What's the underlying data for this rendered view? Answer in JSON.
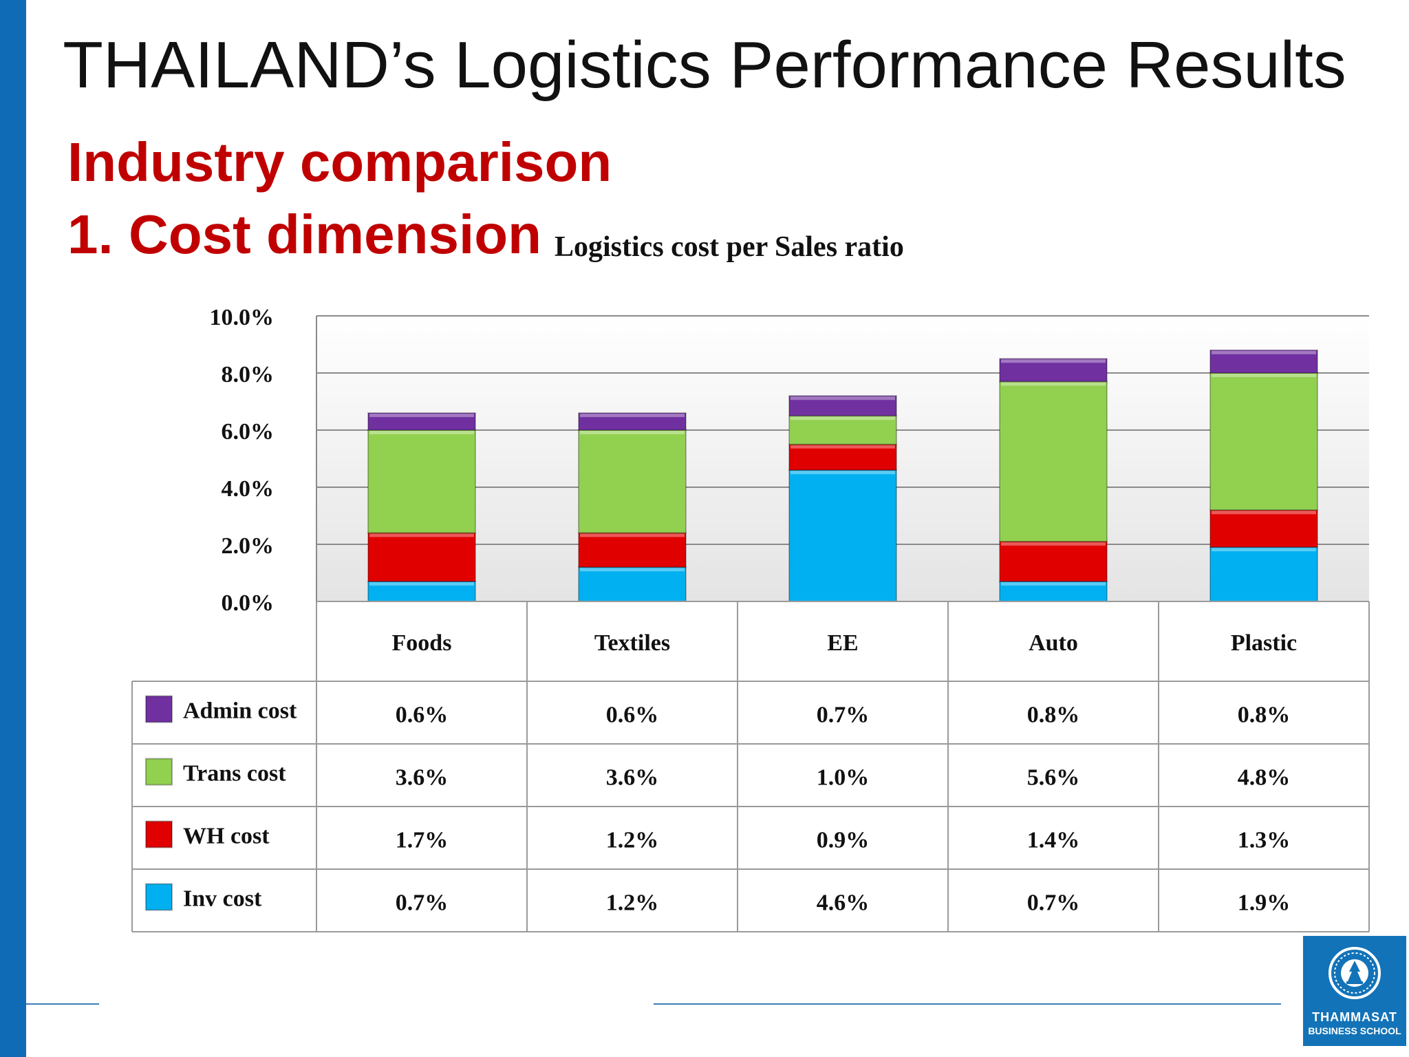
{
  "slide": {
    "title": "THAILAND’s Logistics Performance Results",
    "subtitle1": "Industry comparison",
    "subtitle2": "1. Cost dimension"
  },
  "logo": {
    "line1": "THAMMASAT",
    "line2": "BUSINESS SCHOOL"
  },
  "chart_data": {
    "type": "bar",
    "stacked": true,
    "title": "Logistics cost per Sales ratio",
    "categories": [
      "Foods",
      "Textiles",
      "EE",
      "Auto",
      "Plastic"
    ],
    "series": [
      {
        "name": "Inv cost",
        "values": [
          0.7,
          1.2,
          4.6,
          0.7,
          1.9
        ],
        "labels": [
          "0.7%",
          "1.2%",
          "4.6%",
          "0.7%",
          "1.9%"
        ],
        "color": "#00b0f0"
      },
      {
        "name": "WH cost",
        "values": [
          1.7,
          1.2,
          0.9,
          1.4,
          1.3
        ],
        "labels": [
          "1.7%",
          "1.2%",
          "0.9%",
          "1.4%",
          "1.3%"
        ],
        "color": "#e00000"
      },
      {
        "name": "Trans cost",
        "values": [
          3.6,
          3.6,
          1.0,
          5.6,
          4.8
        ],
        "labels": [
          "3.6%",
          "3.6%",
          "1.0%",
          "5.6%",
          "4.8%"
        ],
        "color": "#92d050"
      },
      {
        "name": "Admin cost",
        "values": [
          0.6,
          0.6,
          0.7,
          0.8,
          0.8
        ],
        "labels": [
          "0.6%",
          "0.6%",
          "0.7%",
          "0.8%",
          "0.8%"
        ],
        "color": "#7030a0"
      }
    ],
    "table_order": [
      "Admin cost",
      "Trans cost",
      "WH cost",
      "Inv cost"
    ],
    "ylim": [
      0,
      10
    ],
    "yticks": [
      0,
      2,
      4,
      6,
      8,
      10
    ],
    "ytick_labels": [
      "0.0%",
      "2.0%",
      "4.0%",
      "6.0%",
      "8.0%",
      "10.0%"
    ],
    "grid": true,
    "legend": "data-table-below"
  }
}
